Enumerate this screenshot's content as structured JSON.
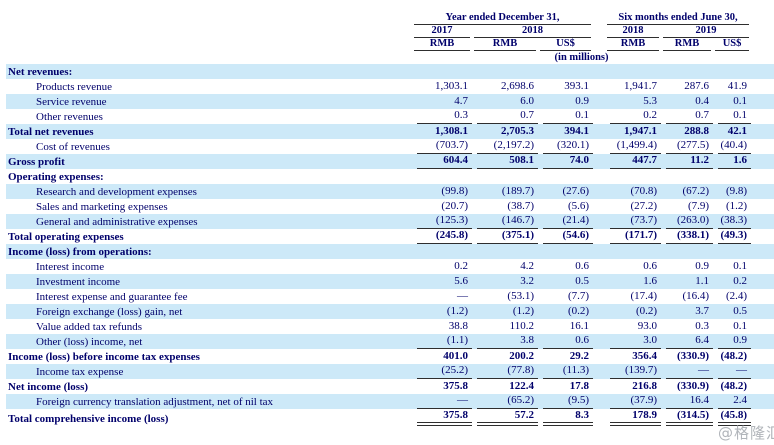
{
  "header": {
    "col_groups": [
      {
        "label": "Year ended December 31,"
      },
      {
        "label": "Six months ended June 30,"
      }
    ],
    "years": [
      "2017",
      "2018",
      "2018",
      "2019"
    ],
    "currencies": [
      "RMB",
      "RMB",
      "US$",
      "RMB",
      "RMB",
      "US$"
    ],
    "units_note": "(in millions)"
  },
  "rows": [
    {
      "label": "Net revenues:",
      "indent": false,
      "bold": true,
      "underline": 0,
      "values": [
        "",
        "",
        "",
        "",
        "",
        ""
      ]
    },
    {
      "label": "Products revenue",
      "indent": true,
      "bold": false,
      "underline": 0,
      "values": [
        "1,303.1",
        "2,698.6",
        "393.1",
        "1,941.7",
        "287.6",
        "41.9"
      ]
    },
    {
      "label": "Service revenue",
      "indent": true,
      "bold": false,
      "underline": 0,
      "values": [
        "4.7",
        "6.0",
        "0.9",
        "5.3",
        "0.4",
        "0.1"
      ]
    },
    {
      "label": "Other revenues",
      "indent": true,
      "bold": false,
      "underline": 1,
      "values": [
        "0.3",
        "0.7",
        "0.1",
        "0.2",
        "0.7",
        "0.1"
      ]
    },
    {
      "label": "Total net revenues",
      "indent": false,
      "bold": true,
      "underline": 0,
      "values": [
        "1,308.1",
        "2,705.3",
        "394.1",
        "1,947.1",
        "288.8",
        "42.1"
      ]
    },
    {
      "label": "Cost of revenues",
      "indent": true,
      "bold": false,
      "underline": 1,
      "values": [
        "(703.7)",
        "(2,197.2)",
        "(320.1)",
        "(1,499.4)",
        "(277.5)",
        "(40.4)"
      ]
    },
    {
      "label": "Gross profit",
      "indent": false,
      "bold": true,
      "underline": 1,
      "values": [
        "604.4",
        "508.1",
        "74.0",
        "447.7",
        "11.2",
        "1.6"
      ]
    },
    {
      "label": "Operating expenses:",
      "indent": false,
      "bold": true,
      "underline": 0,
      "values": [
        "",
        "",
        "",
        "",
        "",
        ""
      ]
    },
    {
      "label": "Research and development expenses",
      "indent": true,
      "bold": false,
      "underline": 0,
      "values": [
        "(99.8)",
        "(189.7)",
        "(27.6)",
        "(70.8)",
        "(67.2)",
        "(9.8)"
      ]
    },
    {
      "label": "Sales and marketing expenses",
      "indent": true,
      "bold": false,
      "underline": 0,
      "values": [
        "(20.7)",
        "(38.7)",
        "(5.6)",
        "(27.2)",
        "(7.9)",
        "(1.2)"
      ]
    },
    {
      "label": "General and administrative expenses",
      "indent": true,
      "bold": false,
      "underline": 1,
      "values": [
        "(125.3)",
        "(146.7)",
        "(21.4)",
        "(73.7)",
        "(263.0)",
        "(38.3)"
      ]
    },
    {
      "label": "Total operating expenses",
      "indent": false,
      "bold": true,
      "underline": 1,
      "values": [
        "(245.8)",
        "(375.1)",
        "(54.6)",
        "(171.7)",
        "(338.1)",
        "(49.3)"
      ]
    },
    {
      "label": "Income (loss) from operations:",
      "indent": false,
      "bold": true,
      "underline": 0,
      "values": [
        "",
        "",
        "",
        "",
        "",
        ""
      ]
    },
    {
      "label": "Interest income",
      "indent": true,
      "bold": false,
      "underline": 0,
      "values": [
        "0.2",
        "4.2",
        "0.6",
        "0.6",
        "0.9",
        "0.1"
      ]
    },
    {
      "label": "Investment income",
      "indent": true,
      "bold": false,
      "underline": 0,
      "values": [
        "5.6",
        "3.2",
        "0.5",
        "1.6",
        "1.1",
        "0.2"
      ]
    },
    {
      "label": "Interest expense and guarantee fee",
      "indent": true,
      "bold": false,
      "underline": 0,
      "values": [
        "—",
        "(53.1)",
        "(7.7)",
        "(17.4)",
        "(16.4)",
        "(2.4)"
      ]
    },
    {
      "label": "Foreign exchange (loss) gain, net",
      "indent": true,
      "bold": false,
      "underline": 0,
      "values": [
        "(1.2)",
        "(1.2)",
        "(0.2)",
        "(0.2)",
        "3.7",
        "0.5"
      ]
    },
    {
      "label": "Value added tax refunds",
      "indent": true,
      "bold": false,
      "underline": 0,
      "values": [
        "38.8",
        "110.2",
        "16.1",
        "93.0",
        "0.3",
        "0.1"
      ]
    },
    {
      "label": "Other (loss) income, net",
      "indent": true,
      "bold": false,
      "underline": 1,
      "values": [
        "(1.1)",
        "3.8",
        "0.6",
        "3.0",
        "6.4",
        "0.9"
      ]
    },
    {
      "label": "Income (loss) before income tax expenses",
      "indent": false,
      "bold": true,
      "underline": 0,
      "values": [
        "401.0",
        "200.2",
        "29.2",
        "356.4",
        "(330.9)",
        "(48.2)"
      ]
    },
    {
      "label": "Income tax expense",
      "indent": true,
      "bold": false,
      "underline": 1,
      "values": [
        "(25.2)",
        "(77.8)",
        "(11.3)",
        "(139.7)",
        "—",
        "—"
      ]
    },
    {
      "label": "Net income (loss)",
      "indent": false,
      "bold": true,
      "underline": 0,
      "values": [
        "375.8",
        "122.4",
        "17.8",
        "216.8",
        "(330.9)",
        "(48.2)"
      ]
    },
    {
      "label": "Foreign currency translation adjustment, net of nil tax",
      "indent": true,
      "bold": false,
      "underline": 1,
      "values": [
        "—",
        "(65.2)",
        "(9.5)",
        "(37.9)",
        "16.4",
        "2.4"
      ]
    },
    {
      "label": "Total comprehensive income (loss)",
      "indent": false,
      "bold": true,
      "underline": 2,
      "values": [
        "375.8",
        "57.2",
        "8.3",
        "178.9",
        "(314.5)",
        "(45.8)"
      ]
    }
  ],
  "watermark": "@格隆汇",
  "colors": {
    "band": "#cde9f8",
    "text": "#00006b",
    "rule": "#2e2e2e",
    "watermark": "#a9adb3"
  }
}
